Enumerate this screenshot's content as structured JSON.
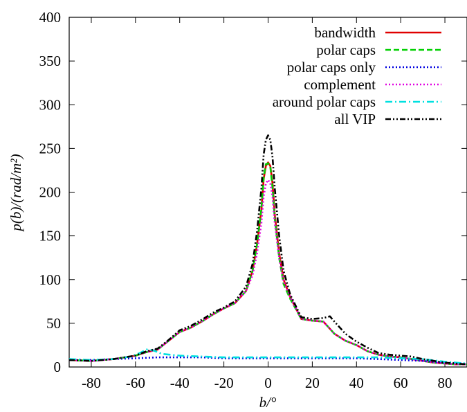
{
  "chart_data": {
    "type": "line",
    "xlabel": "b/°",
    "ylabel": "p(b)/(rad/m²)",
    "xlim": [
      -90,
      90
    ],
    "ylim": [
      0,
      400
    ],
    "xticks": [
      -80,
      -60,
      -40,
      -20,
      0,
      20,
      40,
      60,
      80
    ],
    "xtick_labels": [
      "-80",
      "-60",
      "-40",
      "-20",
      "0",
      "20",
      "40",
      "60",
      "80"
    ],
    "yticks": [
      0,
      50,
      100,
      150,
      200,
      250,
      300,
      350,
      400
    ],
    "ytick_labels": [
      "0",
      "50",
      "100",
      "150",
      "200",
      "250",
      "300",
      "350",
      "400"
    ],
    "grid": false,
    "legend_position": "top-right",
    "series": [
      {
        "name": "bandwidth",
        "color": "#e00000",
        "dash": "solid",
        "x": [
          -90,
          -80,
          -70,
          -60,
          -55,
          -50,
          -45,
          -40,
          -35,
          -30,
          -25,
          -20,
          -15,
          -10,
          -7,
          -5,
          -3,
          -2,
          -1,
          0,
          1,
          2,
          3,
          5,
          7,
          10,
          15,
          20,
          25,
          30,
          35,
          40,
          45,
          50,
          55,
          60,
          65,
          70,
          75,
          80,
          85,
          90
        ],
        "y": [
          8,
          7,
          9,
          13,
          17,
          20,
          30,
          40,
          45,
          52,
          60,
          67,
          73,
          87,
          110,
          140,
          180,
          215,
          230,
          234,
          230,
          210,
          175,
          130,
          100,
          80,
          55,
          53,
          52,
          38,
          30,
          25,
          18,
          14,
          12,
          11,
          9,
          7,
          5,
          4,
          3,
          3
        ]
      },
      {
        "name": "polar caps",
        "color": "#00d000",
        "dash": "dashed",
        "x": [
          -90,
          -80,
          -70,
          -60,
          -55,
          -50,
          -45,
          -40,
          -35,
          -30,
          -25,
          -20,
          -15,
          -10,
          -7,
          -5,
          -3,
          -2,
          -1,
          0,
          1,
          2,
          3,
          5,
          7,
          10,
          15,
          20,
          25,
          30,
          35,
          40,
          45,
          50,
          55,
          60,
          65,
          70,
          75,
          80,
          85,
          90
        ],
        "y": [
          8,
          7,
          9,
          13,
          17,
          20,
          30,
          40,
          45,
          52,
          60,
          67,
          73,
          87,
          110,
          140,
          182,
          217,
          232,
          233,
          229,
          205,
          170,
          125,
          95,
          78,
          55,
          53,
          52,
          38,
          30,
          25,
          18,
          14,
          12,
          11,
          9,
          7,
          5,
          4,
          3,
          3
        ]
      },
      {
        "name": "polar caps only",
        "color": "#0000e0",
        "dash": "dotted",
        "x": [
          -90,
          -80,
          -70,
          -60,
          -50,
          -40,
          -30,
          -20,
          -10,
          0,
          10,
          20,
          30,
          40,
          50,
          60,
          70,
          80,
          90
        ],
        "y": [
          8,
          8,
          9,
          10,
          11,
          11,
          11,
          10,
          10,
          10,
          10,
          10,
          10,
          10,
          9,
          8,
          7,
          5,
          4
        ]
      },
      {
        "name": "complement",
        "color": "#e000e0",
        "dash": "dotted",
        "x": [
          -90,
          -80,
          -70,
          -60,
          -55,
          -50,
          -45,
          -40,
          -35,
          -30,
          -25,
          -20,
          -15,
          -10,
          -7,
          -5,
          -3,
          -2,
          -1,
          0,
          1,
          2,
          3,
          5,
          7,
          10,
          15,
          20,
          25,
          30,
          35,
          40,
          45,
          50,
          55,
          60,
          65,
          70,
          75,
          80,
          85,
          90
        ],
        "y": [
          8,
          7,
          9,
          13,
          17,
          20,
          30,
          40,
          45,
          52,
          60,
          67,
          73,
          87,
          105,
          130,
          165,
          195,
          210,
          214,
          210,
          195,
          165,
          125,
          98,
          80,
          55,
          53,
          52,
          38,
          30,
          25,
          18,
          14,
          12,
          11,
          9,
          7,
          5,
          4,
          3,
          3
        ]
      },
      {
        "name": "around polar caps",
        "color": "#00e0e0",
        "dash": "dashdot",
        "x": [
          -90,
          -80,
          -70,
          -62,
          -58,
          -55,
          -52,
          -48,
          -40,
          -30,
          -20,
          -10,
          0,
          10,
          20,
          30,
          40,
          50,
          60,
          70,
          80,
          90
        ],
        "y": [
          9,
          8,
          9,
          12,
          16,
          20,
          19,
          15,
          13,
          12,
          11,
          11,
          11,
          11,
          11,
          11,
          11,
          11,
          10,
          9,
          6,
          4
        ]
      },
      {
        "name": "all VIP",
        "color": "#000000",
        "dash": "dashdotdot",
        "x": [
          -90,
          -80,
          -70,
          -60,
          -55,
          -50,
          -45,
          -40,
          -35,
          -30,
          -25,
          -20,
          -15,
          -10,
          -7,
          -5,
          -3,
          -2,
          -1,
          0,
          1,
          2,
          3,
          5,
          7,
          10,
          15,
          20,
          25,
          28,
          30,
          35,
          40,
          45,
          50,
          55,
          60,
          65,
          70,
          75,
          80,
          85,
          90
        ],
        "y": [
          8,
          7,
          9,
          13,
          18,
          21,
          31,
          42,
          47,
          54,
          62,
          68,
          75,
          92,
          118,
          155,
          205,
          243,
          260,
          265,
          260,
          240,
          205,
          150,
          110,
          83,
          57,
          55,
          56,
          58,
          52,
          38,
          29,
          22,
          16,
          14,
          13,
          12,
          9,
          7,
          5,
          4,
          3
        ]
      }
    ]
  }
}
